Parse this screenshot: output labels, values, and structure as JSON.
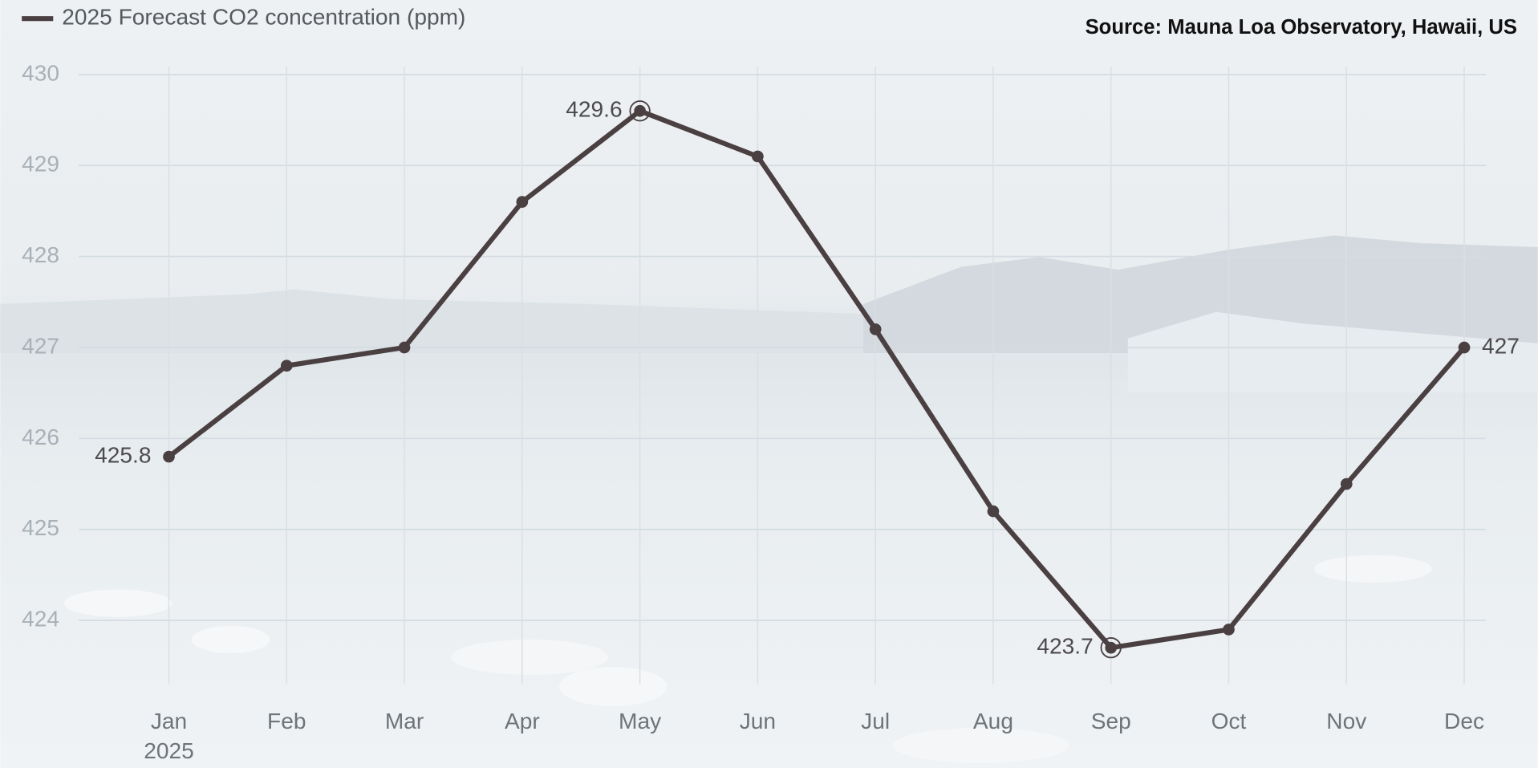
{
  "chart_data": {
    "type": "line",
    "source": "Source: Mauna Loa Observatory, Hawaii, US",
    "categories": [
      "Jan",
      "Feb",
      "Mar",
      "Apr",
      "May",
      "Jun",
      "Jul",
      "Aug",
      "Sep",
      "Oct",
      "Nov",
      "Dec"
    ],
    "category_sublabel": "2025",
    "series": [
      {
        "name": "2025 Forecast CO2 concentration (ppm)",
        "color": "#4a3f41",
        "values": [
          425.8,
          426.8,
          427.0,
          428.6,
          429.6,
          429.1,
          427.2,
          425.2,
          423.7,
          423.9,
          425.5,
          427.0
        ],
        "value_labels": [
          "425.8",
          null,
          null,
          null,
          "429.6",
          null,
          null,
          null,
          "423.7",
          null,
          null,
          "427"
        ]
      }
    ],
    "ylim": [
      423.3,
      430
    ],
    "yticks": [
      424,
      425,
      426,
      427,
      428,
      429,
      430
    ],
    "grid": true,
    "legend": "top-left"
  }
}
